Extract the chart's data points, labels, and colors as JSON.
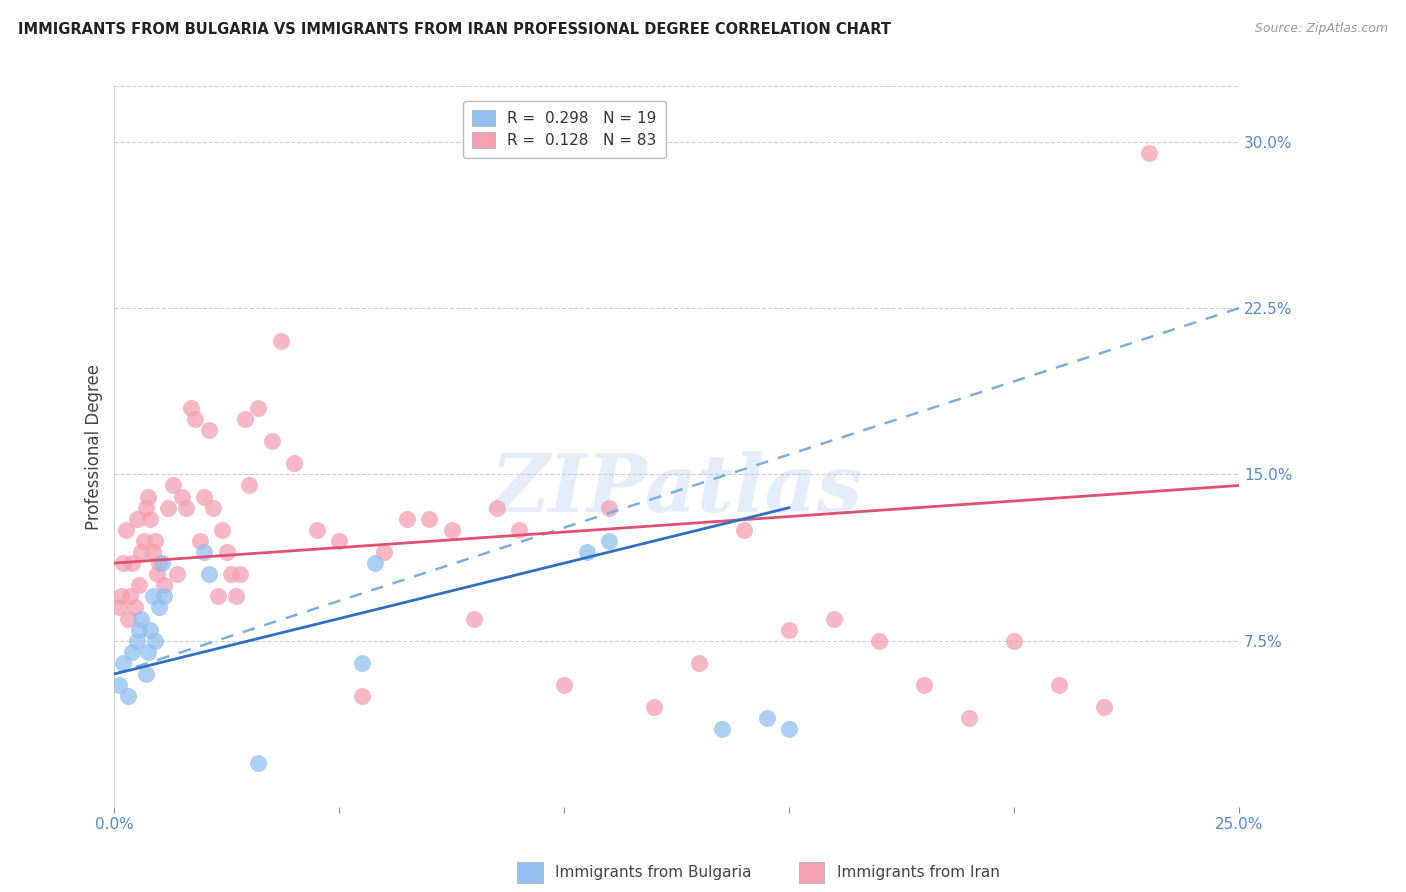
{
  "title": "IMMIGRANTS FROM BULGARIA VS IMMIGRANTS FROM IRAN PROFESSIONAL DEGREE CORRELATION CHART",
  "source": "Source: ZipAtlas.com",
  "ylabel": "Professional Degree",
  "x_tick_labels": [
    "0.0%",
    "",
    "",
    "",
    "",
    "25.0%"
  ],
  "x_tick_values": [
    0.0,
    5.0,
    10.0,
    15.0,
    20.0,
    25.0
  ],
  "y_tick_labels": [
    "7.5%",
    "15.0%",
    "22.5%",
    "30.0%"
  ],
  "y_tick_values": [
    7.5,
    15.0,
    22.5,
    30.0
  ],
  "xlim": [
    0.0,
    25.0
  ],
  "ylim": [
    0.0,
    32.5
  ],
  "legend_label1": "Immigrants from Bulgaria",
  "legend_label2": "Immigrants from Iran",
  "bulgaria_color": "#92c0f0",
  "iran_color": "#f4a0b0",
  "watermark": "ZIPatlas",
  "watermark_color": "#a8c8f0",
  "background_color": "#ffffff",
  "bulgaria_x": [
    0.1,
    0.2,
    0.3,
    0.4,
    0.5,
    0.55,
    0.6,
    0.7,
    0.75,
    0.8,
    0.85,
    0.9,
    1.0,
    1.05,
    1.1,
    2.0,
    2.1,
    3.2,
    5.5,
    5.8,
    10.5,
    11.0,
    13.5,
    14.5,
    15.0
  ],
  "bulgaria_y": [
    5.5,
    6.5,
    5.0,
    7.0,
    7.5,
    8.0,
    8.5,
    6.0,
    7.0,
    8.0,
    9.5,
    7.5,
    9.0,
    11.0,
    9.5,
    11.5,
    10.5,
    2.0,
    6.5,
    11.0,
    11.5,
    12.0,
    3.5,
    4.0,
    3.5
  ],
  "iran_x": [
    0.1,
    0.15,
    0.2,
    0.25,
    0.3,
    0.35,
    0.4,
    0.45,
    0.5,
    0.55,
    0.6,
    0.65,
    0.7,
    0.75,
    0.8,
    0.85,
    0.9,
    0.95,
    1.0,
    1.1,
    1.2,
    1.3,
    1.4,
    1.5,
    1.6,
    1.7,
    1.8,
    1.9,
    2.0,
    2.1,
    2.2,
    2.3,
    2.4,
    2.5,
    2.6,
    2.7,
    2.8,
    2.9,
    3.0,
    3.2,
    3.5,
    3.7,
    4.0,
    4.5,
    5.0,
    5.5,
    6.0,
    6.5,
    7.0,
    7.5,
    8.0,
    8.5,
    9.0,
    10.0,
    11.0,
    12.0,
    13.0,
    14.0,
    15.0,
    16.0,
    17.0,
    18.0,
    19.0,
    20.0,
    21.0,
    22.0,
    23.0
  ],
  "iran_y": [
    9.0,
    9.5,
    11.0,
    12.5,
    8.5,
    9.5,
    11.0,
    9.0,
    13.0,
    10.0,
    11.5,
    12.0,
    13.5,
    14.0,
    13.0,
    11.5,
    12.0,
    10.5,
    11.0,
    10.0,
    13.5,
    14.5,
    10.5,
    14.0,
    13.5,
    18.0,
    17.5,
    12.0,
    14.0,
    17.0,
    13.5,
    9.5,
    12.5,
    11.5,
    10.5,
    9.5,
    10.5,
    17.5,
    14.5,
    18.0,
    16.5,
    21.0,
    15.5,
    12.5,
    12.0,
    5.0,
    11.5,
    13.0,
    13.0,
    12.5,
    8.5,
    13.5,
    12.5,
    5.5,
    13.5,
    4.5,
    6.5,
    12.5,
    8.0,
    8.5,
    7.5,
    5.5,
    4.0,
    7.5,
    5.5,
    4.5,
    29.5
  ],
  "bulgaria_line_start_x": 0.0,
  "bulgaria_line_start_y": 6.0,
  "bulgaria_line_end_x": 15.0,
  "bulgaria_line_end_y": 13.5,
  "bulgaria_dash_end_x": 25.0,
  "bulgaria_dash_end_y": 22.5,
  "iran_line_start_x": 0.0,
  "iran_line_start_y": 11.0,
  "iran_line_end_x": 25.0,
  "iran_line_end_y": 14.5
}
